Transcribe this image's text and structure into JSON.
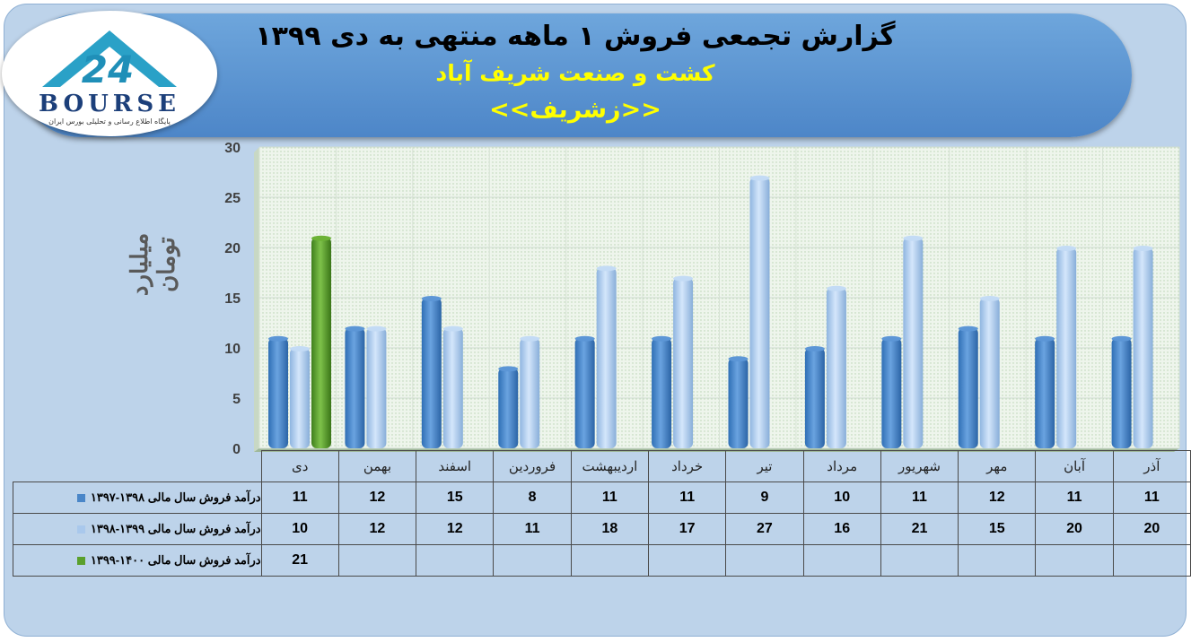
{
  "header": {
    "title": "گزارش تجمعی فروش ۱ ماهه منتهی به دی ۱۳۹۹",
    "company": "کشت و صنعت شریف آباد",
    "symbol": "<<زشریف>>"
  },
  "logo": {
    "text": "BOURSE",
    "number": "24",
    "tagline": "پایگاه اطلاع رسانی و تحلیلی بورس ایران"
  },
  "colors": {
    "series1": "#4a86c8",
    "series2": "#a9c8ec",
    "series3": "#5aa02c",
    "panel": "#bdd3ea",
    "title_bar": "#5b95d3"
  },
  "chart_data": {
    "type": "bar",
    "ylabel": "میلیارد تومان",
    "ylim": [
      0,
      30
    ],
    "yticks": [
      0,
      5,
      10,
      15,
      20,
      25,
      30
    ],
    "grid": true,
    "categories": [
      "دی",
      "بهمن",
      "اسفند",
      "فروردین",
      "اردیبهشت",
      "خرداد",
      "تیر",
      "مرداد",
      "شهریور",
      "مهر",
      "آبان",
      "آذر"
    ],
    "series": [
      {
        "name": "درآمد فروش سال مالی ۱۳۹۸-۱۳۹۷",
        "values": [
          11,
          12,
          15,
          8,
          11,
          11,
          9,
          10,
          11,
          12,
          11,
          11
        ]
      },
      {
        "name": "درآمد فروش سال مالی ۱۳۹۹-۱۳۹۸",
        "values": [
          10,
          12,
          12,
          11,
          18,
          17,
          27,
          16,
          21,
          15,
          20,
          20
        ]
      },
      {
        "name": "درآمد فروش سال مالی ۱۴۰۰-۱۳۹۹",
        "values": [
          21,
          null,
          null,
          null,
          null,
          null,
          null,
          null,
          null,
          null,
          null,
          null
        ]
      }
    ]
  }
}
